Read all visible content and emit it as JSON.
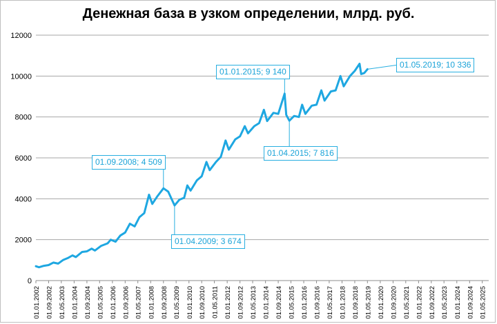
{
  "chart_data": {
    "type": "line",
    "title": "Денежная база в узком определении, млрд. руб.",
    "xlabel": "",
    "ylabel": "",
    "ylim": [
      0,
      12000
    ],
    "yticks": [
      0,
      2000,
      4000,
      6000,
      8000,
      10000,
      12000
    ],
    "xlim": [
      "2002-01-01",
      "2025-09-01"
    ],
    "grid": true,
    "legend": "none",
    "x_tick_labels": [
      "01.01.2002",
      "01.09.2002",
      "01.05.2003",
      "01.01.2004",
      "01.09.2004",
      "01.05.2005",
      "01.01.2006",
      "01.09.2006",
      "01.05.2007",
      "01.01.2008",
      "01.09.2008",
      "01.05.2009",
      "01.01.2010",
      "01.09.2010",
      "01.05.2011",
      "01.01.2012",
      "01.09.2012",
      "01.05.2013",
      "01.01.2014",
      "01.09.2014",
      "01.05.2015",
      "01.01.2016",
      "01.09.2016",
      "01.05.2017",
      "01.01.2018",
      "01.09.2018",
      "01.05.2019",
      "01.01.2020",
      "01.09.2020",
      "01.05.2021",
      "01.01.2022",
      "01.09.2022",
      "01.05.2023",
      "01.01.2024",
      "01.09.2024",
      "01.05.2025"
    ],
    "series": [
      {
        "color": "#1ea7e1",
        "points": [
          [
            "2002-01-01",
            700
          ],
          [
            "2002-03-01",
            650
          ],
          [
            "2002-06-01",
            720
          ],
          [
            "2002-09-01",
            760
          ],
          [
            "2002-12-01",
            880
          ],
          [
            "2003-03-01",
            830
          ],
          [
            "2003-06-01",
            1000
          ],
          [
            "2003-09-01",
            1100
          ],
          [
            "2003-12-01",
            1230
          ],
          [
            "2004-02-01",
            1150
          ],
          [
            "2004-06-01",
            1400
          ],
          [
            "2004-09-01",
            1430
          ],
          [
            "2004-12-01",
            1560
          ],
          [
            "2005-02-01",
            1470
          ],
          [
            "2005-06-01",
            1700
          ],
          [
            "2005-10-01",
            1820
          ],
          [
            "2005-12-01",
            2000
          ],
          [
            "2006-03-01",
            1900
          ],
          [
            "2006-06-01",
            2200
          ],
          [
            "2006-09-01",
            2350
          ],
          [
            "2006-12-01",
            2780
          ],
          [
            "2007-03-01",
            2650
          ],
          [
            "2007-06-01",
            3100
          ],
          [
            "2007-09-01",
            3300
          ],
          [
            "2007-12-01",
            4200
          ],
          [
            "2008-02-01",
            3750
          ],
          [
            "2008-05-01",
            4100
          ],
          [
            "2008-09-01",
            4509
          ],
          [
            "2008-12-01",
            4350
          ],
          [
            "2009-02-01",
            4000
          ],
          [
            "2009-04-01",
            3674
          ],
          [
            "2009-07-01",
            3950
          ],
          [
            "2009-10-01",
            4050
          ],
          [
            "2009-12-01",
            4650
          ],
          [
            "2010-02-01",
            4400
          ],
          [
            "2010-06-01",
            4900
          ],
          [
            "2010-09-01",
            5100
          ],
          [
            "2010-12-01",
            5800
          ],
          [
            "2011-02-01",
            5400
          ],
          [
            "2011-06-01",
            5800
          ],
          [
            "2011-09-01",
            6050
          ],
          [
            "2011-12-01",
            6850
          ],
          [
            "2012-02-01",
            6400
          ],
          [
            "2012-06-01",
            6900
          ],
          [
            "2012-09-01",
            7050
          ],
          [
            "2012-12-01",
            7550
          ],
          [
            "2013-02-01",
            7200
          ],
          [
            "2013-06-01",
            7550
          ],
          [
            "2013-09-01",
            7700
          ],
          [
            "2013-12-01",
            8350
          ],
          [
            "2014-02-01",
            7800
          ],
          [
            "2014-06-01",
            8200
          ],
          [
            "2014-09-01",
            8150
          ],
          [
            "2015-01-01",
            9140
          ],
          [
            "2015-02-01",
            8100
          ],
          [
            "2015-04-01",
            7816
          ],
          [
            "2015-07-01",
            8050
          ],
          [
            "2015-10-01",
            8000
          ],
          [
            "2015-12-01",
            8600
          ],
          [
            "2016-02-01",
            8150
          ],
          [
            "2016-06-01",
            8550
          ],
          [
            "2016-09-01",
            8600
          ],
          [
            "2016-12-01",
            9300
          ],
          [
            "2017-02-01",
            8800
          ],
          [
            "2017-06-01",
            9250
          ],
          [
            "2017-09-01",
            9300
          ],
          [
            "2017-12-01",
            10000
          ],
          [
            "2018-02-01",
            9500
          ],
          [
            "2018-06-01",
            10000
          ],
          [
            "2018-09-01",
            10250
          ],
          [
            "2018-12-01",
            10600
          ],
          [
            "2019-01-01",
            10100
          ],
          [
            "2019-03-01",
            10150
          ],
          [
            "2019-05-01",
            10336
          ]
        ]
      }
    ],
    "annotations": [
      {
        "id": "a2008",
        "text": "01.09.2008; 4 509",
        "x": "2008-09-01",
        "y": 4509
      },
      {
        "id": "a2009",
        "text": "01.04.2009; 3 674",
        "x": "2009-04-01",
        "y": 3674
      },
      {
        "id": "a2015a",
        "text": "01.01.2015; 9 140",
        "x": "2015-01-01",
        "y": 9140
      },
      {
        "id": "a2015b",
        "text": "01.04.2015; 7 816",
        "x": "2015-04-01",
        "y": 7816
      },
      {
        "id": "a2019",
        "text": "01.05.2019; 10 336",
        "x": "2019-05-01",
        "y": 10336
      }
    ]
  }
}
